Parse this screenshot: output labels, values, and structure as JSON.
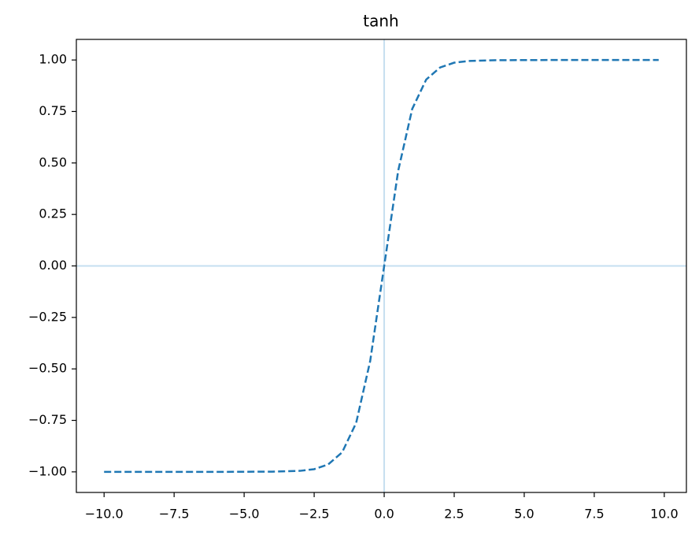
{
  "chart_data": {
    "type": "line",
    "title": "tanh",
    "x": [
      -10,
      -8,
      -6,
      -4,
      -3,
      -2.5,
      -2,
      -1.5,
      -1,
      -0.5,
      0,
      0.5,
      1,
      1.5,
      2,
      2.5,
      3,
      4,
      6,
      8,
      9.8
    ],
    "series": [
      {
        "color": "#1f77b4",
        "linestyle": "dashed",
        "values": [
          -1,
          -1,
          -1,
          -0.999,
          -0.995,
          -0.987,
          -0.964,
          -0.905,
          -0.762,
          -0.462,
          0,
          0.462,
          0.762,
          0.905,
          0.964,
          0.987,
          0.995,
          0.999,
          1,
          1,
          1
        ]
      }
    ],
    "xlim": [
      -10.99,
      10.79
    ],
    "ylim": [
      -1.1,
      1.1
    ],
    "xticks": [
      {
        "value": -10,
        "label": "−10.0"
      },
      {
        "value": -7.5,
        "label": "−7.5"
      },
      {
        "value": -5,
        "label": "−5.0"
      },
      {
        "value": -2.5,
        "label": "−2.5"
      },
      {
        "value": 0,
        "label": "0.0"
      },
      {
        "value": 2.5,
        "label": "2.5"
      },
      {
        "value": 5,
        "label": "5.0"
      },
      {
        "value": 7.5,
        "label": "7.5"
      },
      {
        "value": 10,
        "label": "10.0"
      }
    ],
    "yticks": [
      {
        "value": -1,
        "label": "−1.00"
      },
      {
        "value": -0.75,
        "label": "−0.75"
      },
      {
        "value": -0.5,
        "label": "−0.50"
      },
      {
        "value": -0.25,
        "label": "−0.25"
      },
      {
        "value": 0,
        "label": "0.00"
      },
      {
        "value": 0.25,
        "label": "0.25"
      },
      {
        "value": 0.5,
        "label": "0.50"
      },
      {
        "value": 0.75,
        "label": "0.75"
      },
      {
        "value": 1,
        "label": "1.00"
      }
    ],
    "axhline": 0,
    "axvline": 0,
    "reference_color": "#c6dff0"
  }
}
